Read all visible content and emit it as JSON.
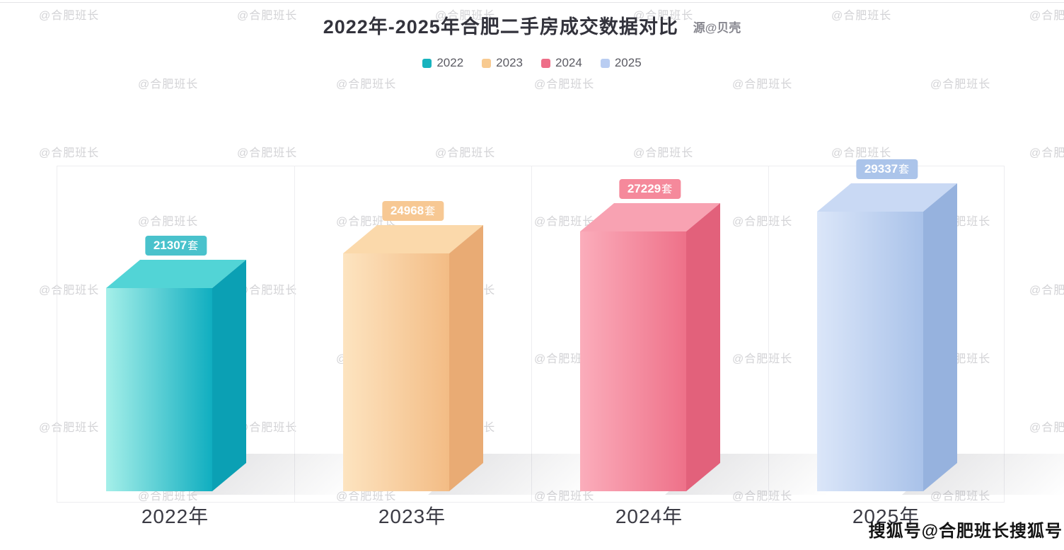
{
  "chart_data": {
    "type": "bar",
    "title": "2022年-2025年合肥二手房成交数据对比",
    "source": "源@贝壳",
    "unit": "套",
    "categories": [
      "2022年",
      "2023年",
      "2024年",
      "2025年"
    ],
    "values": [
      21307,
      24968,
      27229,
      29337
    ],
    "ylim": [
      0,
      29337
    ],
    "grid": false,
    "legend_position": "top-center",
    "series": [
      {
        "name": "2022",
        "value": 21307,
        "colors": {
          "legend": "#18b3be",
          "badge": "#49c2cc",
          "top": "#52d4d6",
          "front_light": "#a5efe9",
          "front_dark": "#10aec0",
          "side": "#0ba0b4"
        }
      },
      {
        "name": "2023",
        "value": 24968,
        "colors": {
          "legend": "#f8ca90",
          "badge": "#f7c893",
          "top": "#fbd9ab",
          "front_light": "#fde4c0",
          "front_dark": "#f3bc85",
          "side": "#e9ab74"
        }
      },
      {
        "name": "2024",
        "value": 27229,
        "colors": {
          "legend": "#ee6e88",
          "badge": "#f5899b",
          "top": "#f8a2b2",
          "front_light": "#fbadbb",
          "front_dark": "#ee7189",
          "side": "#e2617b"
        }
      },
      {
        "name": "2025",
        "value": 29337,
        "colors": {
          "legend": "#b9cdf2",
          "badge": "#abc4ea",
          "top": "#c9d9f4",
          "front_light": "#dbe6f9",
          "front_dark": "#a9c2e9",
          "side": "#96b2de"
        }
      }
    ]
  },
  "watermark": {
    "text": "@合肥班长"
  },
  "footer": {
    "watermark_text": "搜狐号@合肥班长搜狐号"
  }
}
